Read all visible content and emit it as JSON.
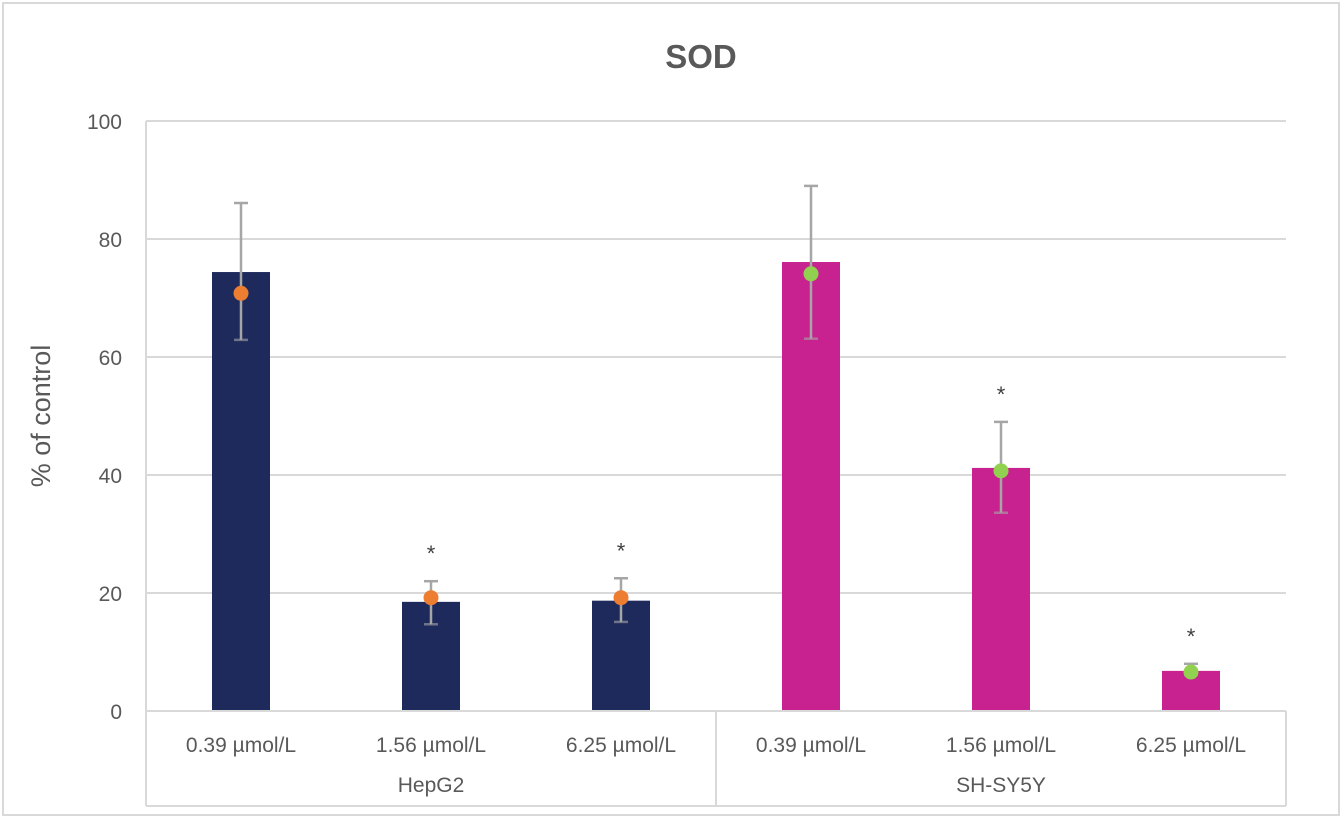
{
  "chart_data": {
    "type": "bar",
    "title": "SOD",
    "xlabel": "",
    "ylabel": "% of control",
    "ylim": [
      0,
      100
    ],
    "yticks": [
      0,
      20,
      40,
      60,
      80,
      100
    ],
    "grid": true,
    "legend": "none",
    "groups": [
      {
        "name": "HepG2",
        "color": "#1f2a5c",
        "marker_color": "#ed7d31",
        "categories": [
          "0.39 µmol/L",
          "1.56 µmol/L",
          "6.25 µmol/L"
        ],
        "values": [
          74.4,
          18.5,
          18.7
        ],
        "error_upper": [
          86.1,
          22.0,
          22.5
        ],
        "error_lower": [
          62.9,
          14.7,
          15.1
        ],
        "markers": [
          70.8,
          19.2,
          19.2
        ],
        "significance": [
          "",
          "*",
          "*"
        ]
      },
      {
        "name": "SH-SY5Y",
        "color": "#c7228f",
        "marker_color": "#92d050",
        "categories": [
          "0.39 µmol/L",
          "1.56 µmol/L",
          "6.25 µmol/L"
        ],
        "values": [
          76.1,
          41.2,
          6.8
        ],
        "error_upper": [
          89.0,
          49.0,
          8.0
        ],
        "error_lower": [
          63.1,
          33.6,
          6.1
        ],
        "markers": [
          74.1,
          40.7,
          6.6
        ],
        "significance": [
          "",
          "*",
          "*"
        ]
      }
    ]
  }
}
